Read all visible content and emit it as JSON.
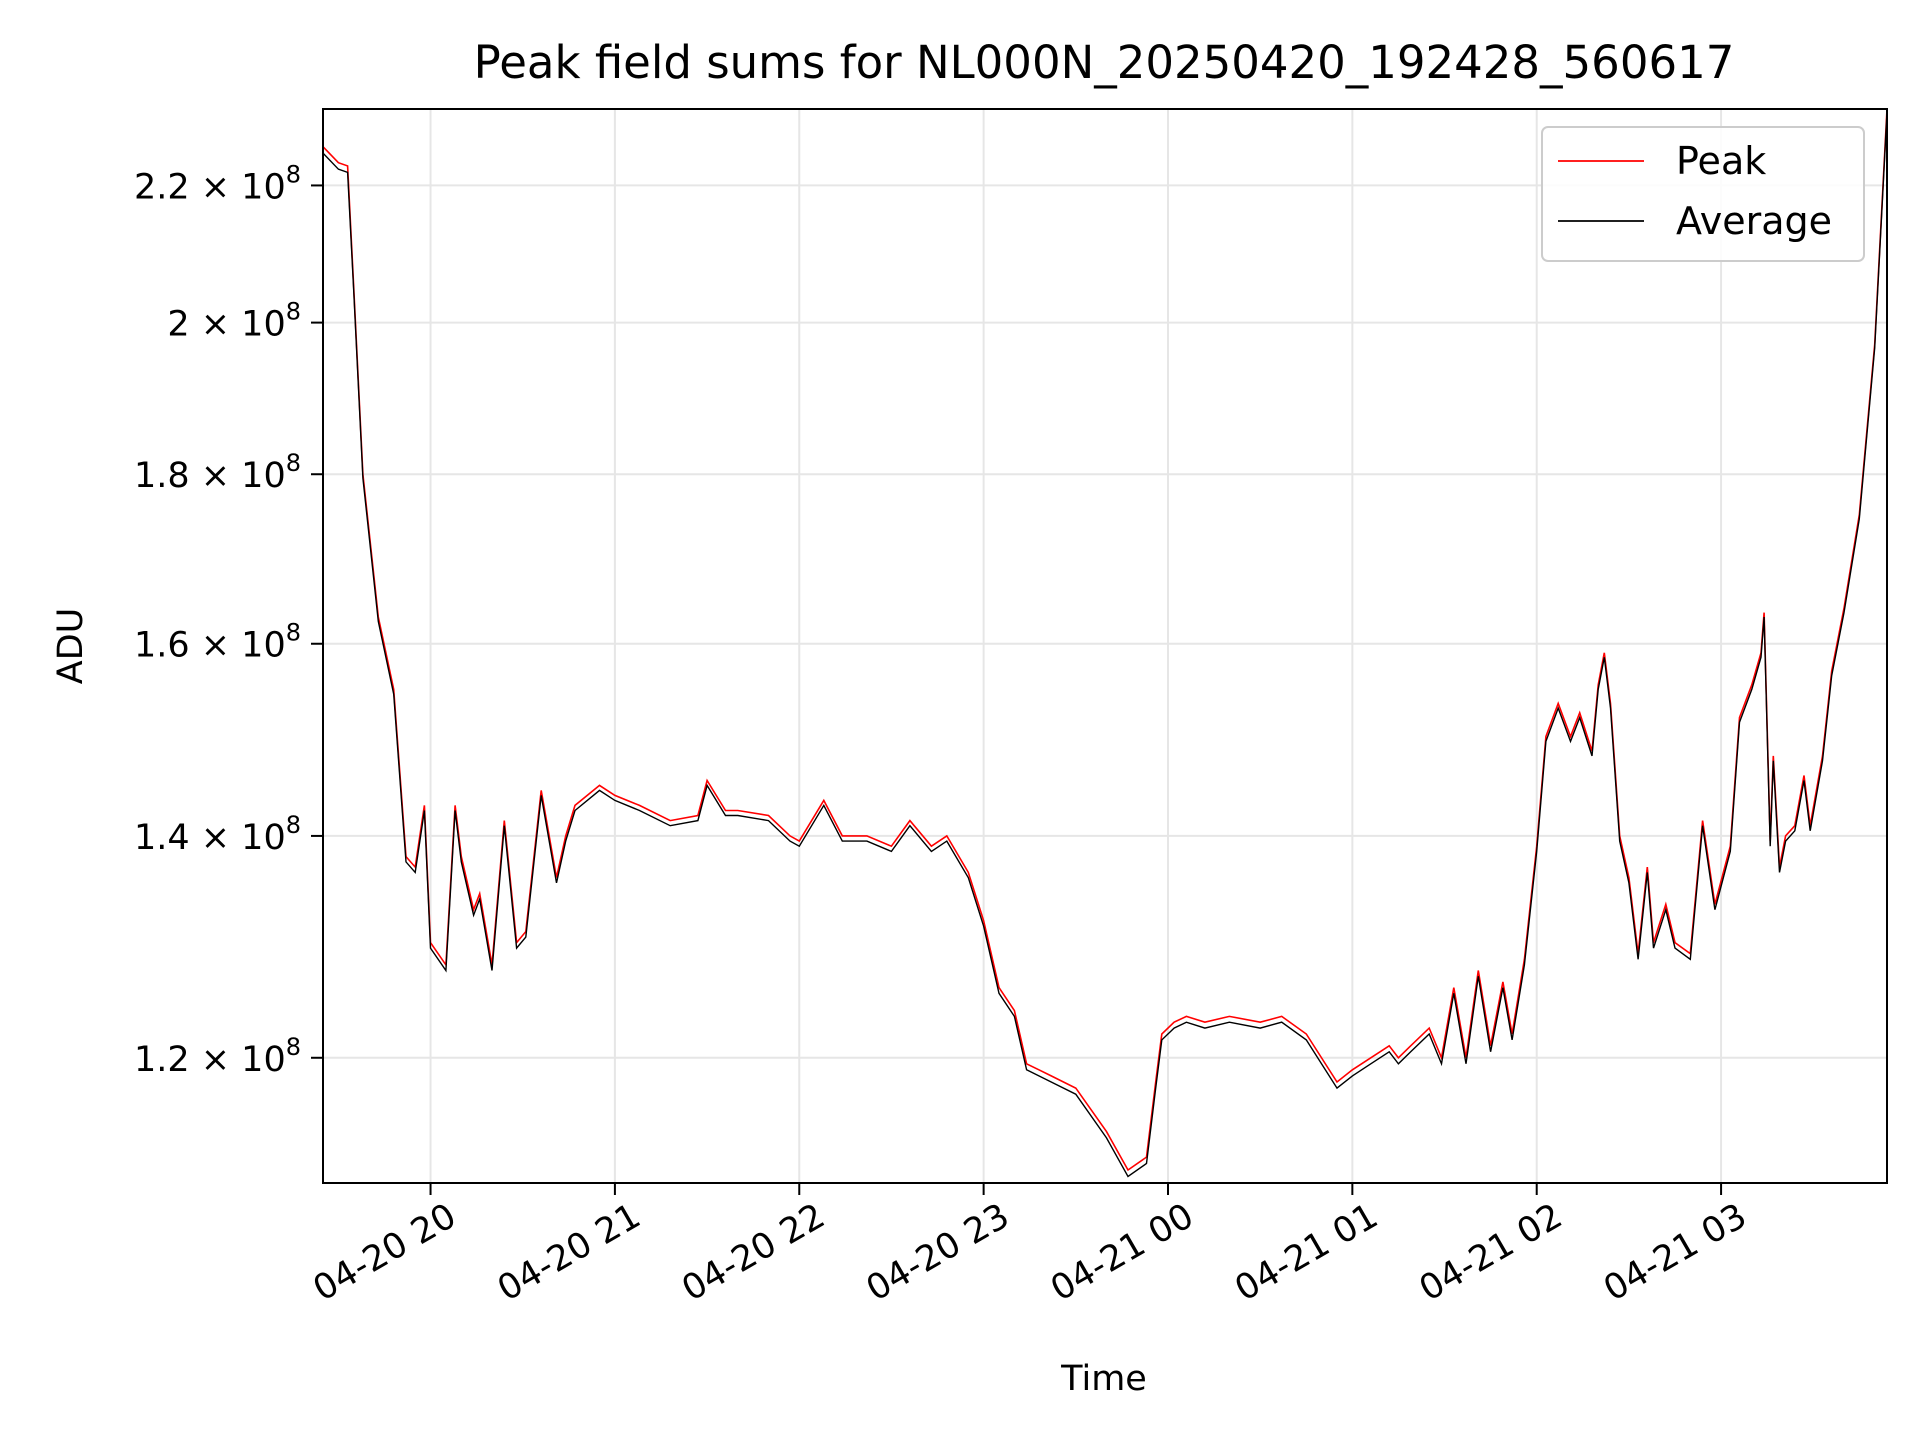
{
  "chart_data": {
    "type": "line",
    "title": "Peak field sums for NL000N_20250420_192428_560617",
    "xlabel": "Time",
    "ylabel": "ADU",
    "xlim": [
      "2025-04-20 19:25",
      "2025-04-21 03:54"
    ],
    "ylim": [
      110000000,
      232000000
    ],
    "y_scale": "log",
    "grid": true,
    "legend_position": "top-right",
    "x_ticks": [
      "04-20 20",
      "04-20 21",
      "04-20 22",
      "04-20 23",
      "04-21 00",
      "04-21 01",
      "04-21 02",
      "04-21 03"
    ],
    "x_tick_times": [
      "2025-04-20 20:00",
      "2025-04-20 21:00",
      "2025-04-20 22:00",
      "2025-04-20 23:00",
      "2025-04-21 00:00",
      "2025-04-21 01:00",
      "2025-04-21 02:00",
      "2025-04-21 03:00"
    ],
    "y_ticks": [
      {
        "value": 120000000,
        "mantissa": "1.2",
        "exp": "8"
      },
      {
        "value": 140000000,
        "mantissa": "1.4",
        "exp": "8"
      },
      {
        "value": 160000000,
        "mantissa": "1.6",
        "exp": "8"
      },
      {
        "value": 180000000,
        "mantissa": "1.8",
        "exp": "8"
      },
      {
        "value": 200000000,
        "mantissa": "2",
        "exp": "8"
      },
      {
        "value": 220000000,
        "mantissa": "2.2",
        "exp": "8"
      }
    ],
    "x": [
      "2025-04-20 19:25",
      "2025-04-20 19:30",
      "2025-04-20 19:33",
      "2025-04-20 19:35",
      "2025-04-20 19:38",
      "2025-04-20 19:43",
      "2025-04-20 19:48",
      "2025-04-20 19:52",
      "2025-04-20 19:55",
      "2025-04-20 19:58",
      "2025-04-20 20:00",
      "2025-04-20 20:05",
      "2025-04-20 20:08",
      "2025-04-20 20:10",
      "2025-04-20 20:14",
      "2025-04-20 20:16",
      "2025-04-20 20:20",
      "2025-04-20 20:24",
      "2025-04-20 20:28",
      "2025-04-20 20:31",
      "2025-04-20 20:36",
      "2025-04-20 20:41",
      "2025-04-20 20:44",
      "2025-04-20 20:47",
      "2025-04-20 20:55",
      "2025-04-20 21:00",
      "2025-04-20 21:08",
      "2025-04-20 21:18",
      "2025-04-20 21:27",
      "2025-04-20 21:30",
      "2025-04-20 21:36",
      "2025-04-20 21:40",
      "2025-04-20 21:50",
      "2025-04-20 21:57",
      "2025-04-20 22:00",
      "2025-04-20 22:08",
      "2025-04-20 22:14",
      "2025-04-20 22:22",
      "2025-04-20 22:30",
      "2025-04-20 22:36",
      "2025-04-20 22:43",
      "2025-04-20 22:48",
      "2025-04-20 22:55",
      "2025-04-20 23:00",
      "2025-04-20 23:05",
      "2025-04-20 23:10",
      "2025-04-20 23:14",
      "2025-04-20 23:18",
      "2025-04-20 23:22",
      "2025-04-20 23:30",
      "2025-04-20 23:40",
      "2025-04-20 23:47",
      "2025-04-20 23:53",
      "2025-04-20 23:56",
      "2025-04-20 23:58",
      "2025-04-21 00:02",
      "2025-04-21 00:06",
      "2025-04-21 00:12",
      "2025-04-21 00:20",
      "2025-04-21 00:30",
      "2025-04-21 00:37",
      "2025-04-21 00:45",
      "2025-04-21 00:55",
      "2025-04-21 01:00",
      "2025-04-21 01:06",
      "2025-04-21 01:12",
      "2025-04-21 01:15",
      "2025-04-21 01:19",
      "2025-04-21 01:25",
      "2025-04-21 01:29",
      "2025-04-21 01:33",
      "2025-04-21 01:37",
      "2025-04-21 01:41",
      "2025-04-21 01:45",
      "2025-04-21 01:49",
      "2025-04-21 01:52",
      "2025-04-21 01:56",
      "2025-04-21 02:00",
      "2025-04-21 02:03",
      "2025-04-21 02:07",
      "2025-04-21 02:11",
      "2025-04-21 02:14",
      "2025-04-21 02:18",
      "2025-04-21 02:20",
      "2025-04-21 02:22",
      "2025-04-21 02:24",
      "2025-04-21 02:27",
      "2025-04-21 02:30",
      "2025-04-21 02:33",
      "2025-04-21 02:36",
      "2025-04-21 02:38",
      "2025-04-21 02:42",
      "2025-04-21 02:45",
      "2025-04-21 02:50",
      "2025-04-21 02:54",
      "2025-04-21 02:58",
      "2025-04-21 03:03",
      "2025-04-21 03:06",
      "2025-04-21 03:10",
      "2025-04-21 03:13",
      "2025-04-21 03:14",
      "2025-04-21 03:16",
      "2025-04-21 03:17",
      "2025-04-21 03:19",
      "2025-04-21 03:21",
      "2025-04-21 03:24",
      "2025-04-21 03:27",
      "2025-04-21 03:29",
      "2025-04-21 03:33",
      "2025-04-21 03:36",
      "2025-04-21 03:40",
      "2025-04-21 03:45",
      "2025-04-21 03:50",
      "2025-04-21 03:54"
    ],
    "series": [
      {
        "name": "Peak",
        "color": "#ff0000",
        "values": [
          226000000,
          223500000,
          223000000,
          205000000,
          180000000,
          163000000,
          155000000,
          138000000,
          137000000,
          143000000,
          130000000,
          128000000,
          143000000,
          138000000,
          133000000,
          134500000,
          128000000,
          141500000,
          130000000,
          131000000,
          144500000,
          136000000,
          140000000,
          143000000,
          145000000,
          144000000,
          143000000,
          141500000,
          142000000,
          145500000,
          142500000,
          142500000,
          142000000,
          140000000,
          139500000,
          143500000,
          140000000,
          140000000,
          139000000,
          141500000,
          139000000,
          140000000,
          136500000,
          132000000,
          126000000,
          124000000,
          119500000,
          119000000,
          118500000,
          117500000,
          114000000,
          111000000,
          112000000,
          118000000,
          122000000,
          123000000,
          123500000,
          123000000,
          123500000,
          123000000,
          123500000,
          122000000,
          118000000,
          119000000,
          120000000,
          121000000,
          120000000,
          121000000,
          122500000,
          120000000,
          126000000,
          120000000,
          127500000,
          121000000,
          126500000,
          122000000,
          128500000,
          139000000,
          150000000,
          153500000,
          150000000,
          152500000,
          148500000,
          155500000,
          159000000,
          153500000,
          140000000,
          136000000,
          129000000,
          137000000,
          130000000,
          133500000,
          130000000,
          129000000,
          141500000,
          133500000,
          139000000,
          152000000,
          155500000,
          159000000,
          163500000,
          139500000,
          148000000,
          137000000,
          140000000,
          141000000,
          146000000,
          141000000,
          148000000,
          157000000,
          164000000,
          175000000,
          197000000,
          232000000
        ]
      },
      {
        "name": "Average",
        "color": "#000000",
        "values": [
          225000000,
          222500000,
          222000000,
          204500000,
          179500000,
          162500000,
          154500000,
          137500000,
          136500000,
          142500000,
          129500000,
          127500000,
          142500000,
          137500000,
          132500000,
          134000000,
          127500000,
          141000000,
          129500000,
          130500000,
          144000000,
          135500000,
          139500000,
          142500000,
          144500000,
          143500000,
          142500000,
          141000000,
          141500000,
          145000000,
          142000000,
          142000000,
          141500000,
          139500000,
          139000000,
          143000000,
          139500000,
          139500000,
          138500000,
          141000000,
          138500000,
          139500000,
          136000000,
          131500000,
          125500000,
          123500000,
          119000000,
          118500000,
          118000000,
          117000000,
          113500000,
          110500000,
          111500000,
          117500000,
          121500000,
          122500000,
          123000000,
          122500000,
          123000000,
          122500000,
          123000000,
          121500000,
          117500000,
          118500000,
          119500000,
          120500000,
          119500000,
          120500000,
          122000000,
          119500000,
          125500000,
          119500000,
          127000000,
          120500000,
          126000000,
          121500000,
          128000000,
          138500000,
          149500000,
          153000000,
          149500000,
          152000000,
          148000000,
          155000000,
          158500000,
          153000000,
          139500000,
          135500000,
          128500000,
          136500000,
          129500000,
          133000000,
          129500000,
          128500000,
          141000000,
          133000000,
          138500000,
          151500000,
          155000000,
          158500000,
          163000000,
          139000000,
          147500000,
          136500000,
          139500000,
          140500000,
          145500000,
          140500000,
          147500000,
          156500000,
          163500000,
          174500000,
          196500000,
          231500000
        ]
      }
    ]
  }
}
